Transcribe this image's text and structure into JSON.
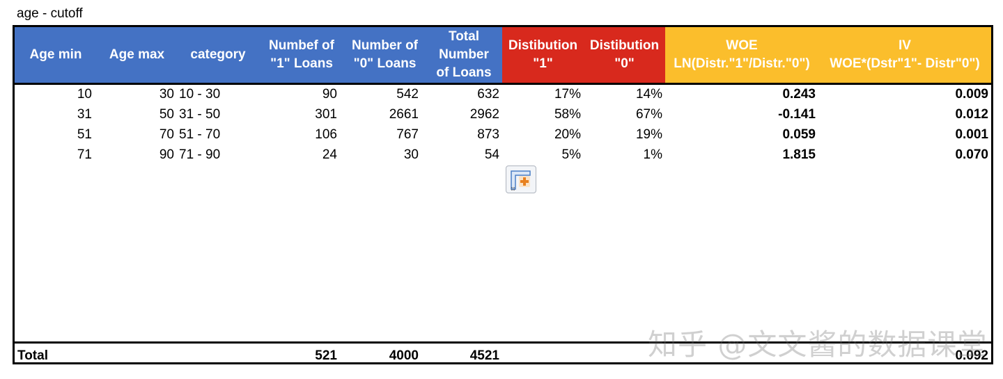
{
  "sheet_title": "age - cutoff",
  "headers": {
    "age_min": "Age min",
    "age_max": "Age max",
    "category": "category",
    "num1_l1": "Numbef of",
    "num1_l2": "\"1\" Loans",
    "num0_l1": "Number of",
    "num0_l2": "\"0\" Loans",
    "total_l1": "Total",
    "total_l2": "Number",
    "total_l3": "of Loans",
    "dist1_l1": "Distibution",
    "dist1_l2": "\"1\"",
    "dist0_l1": "Distibution",
    "dist0_l2": "\"0\"",
    "woe_l1": "WOE",
    "woe_l2": "LN(Distr.\"1\"/Distr.\"0\")",
    "iv_l1": "IV",
    "iv_l2": "WOE*(Dstr\"1\"- Distr\"0\")"
  },
  "rows": [
    {
      "age_min": "10",
      "age_max": "30",
      "category": "10 - 30",
      "num1": "90",
      "num0": "542",
      "total": "632",
      "dist1": "17%",
      "dist0": "14%",
      "woe": "0.243",
      "iv": "0.009"
    },
    {
      "age_min": "31",
      "age_max": "50",
      "category": "31 - 50",
      "num1": "301",
      "num0": "2661",
      "total": "2962",
      "dist1": "58%",
      "dist0": "67%",
      "woe": "-0.141",
      "iv": "0.012"
    },
    {
      "age_min": "51",
      "age_max": "70",
      "category": "51 - 70",
      "num1": "106",
      "num0": "767",
      "total": "873",
      "dist1": "20%",
      "dist0": "19%",
      "woe": "0.059",
      "iv": "0.001"
    },
    {
      "age_min": "71",
      "age_max": "90",
      "category": "71 - 90",
      "num1": "24",
      "num0": "30",
      "total": "54",
      "dist1": "5%",
      "dist0": "1%",
      "woe": "1.815",
      "iv": "0.070"
    }
  ],
  "total": {
    "label": "Total",
    "num1": "521",
    "num0": "4000",
    "total": "4521",
    "iv": "0.092"
  },
  "paste_options_icon": "paste-options-icon",
  "watermark": "知乎 @文文酱的数据课堂",
  "colors": {
    "blue": "#4472c4",
    "red": "#d8291d",
    "gold": "#fbbe2c"
  }
}
